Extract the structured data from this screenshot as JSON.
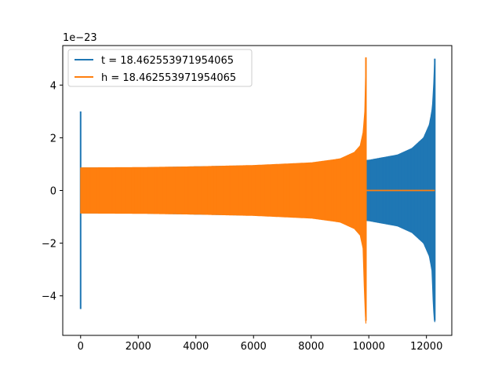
{
  "chart_data": {
    "type": "line",
    "title": "",
    "xlabel": "",
    "ylabel": "",
    "y_offset_label": "1e−23",
    "xlim": [
      -620,
      12880
    ],
    "ylim": [
      -5.5,
      5.5
    ],
    "x_ticks": [
      0,
      2000,
      4000,
      6000,
      8000,
      10000,
      12000
    ],
    "x_tick_labels": [
      "0",
      "2000",
      "4000",
      "6000",
      "8000",
      "10000",
      "12000"
    ],
    "y_ticks": [
      -4,
      -2,
      0,
      2,
      4
    ],
    "y_tick_labels": [
      "−4",
      "−2",
      "0",
      "2",
      "4"
    ],
    "grid": false,
    "legend_position": "top-left",
    "series": [
      {
        "name": "t = 18.462553971954065",
        "color": "#1f77b4",
        "samples": 12290,
        "initial_spike": {
          "x": [
            0,
            25
          ],
          "min": -4.5,
          "max": 3.0
        },
        "envelope": [
          [
            30,
            0.86
          ],
          [
            2000,
            0.86
          ],
          [
            4000,
            0.9
          ],
          [
            6000,
            0.94
          ],
          [
            8000,
            1.0
          ],
          [
            10000,
            1.15
          ],
          [
            11000,
            1.35
          ],
          [
            11500,
            1.6
          ],
          [
            11900,
            2.0
          ],
          [
            12100,
            2.5
          ],
          [
            12200,
            3.1
          ],
          [
            12240,
            3.8
          ],
          [
            12270,
            4.6
          ],
          [
            12290,
            5.0
          ]
        ],
        "envelope_min_end": -4.95,
        "tail_flat_from": 12290
      },
      {
        "name": "h = 18.462553971954065",
        "color": "#ff7f0e",
        "samples": 12290,
        "initial_spike": null,
        "envelope": [
          [
            0,
            0.86
          ],
          [
            2000,
            0.87
          ],
          [
            4000,
            0.9
          ],
          [
            6000,
            0.95
          ],
          [
            8000,
            1.05
          ],
          [
            9000,
            1.2
          ],
          [
            9500,
            1.45
          ],
          [
            9700,
            1.7
          ],
          [
            9800,
            2.2
          ],
          [
            9860,
            3.0
          ],
          [
            9900,
            5.05
          ]
        ],
        "envelope_min_end": -4.95,
        "tail_flat_from": 9900
      }
    ]
  }
}
